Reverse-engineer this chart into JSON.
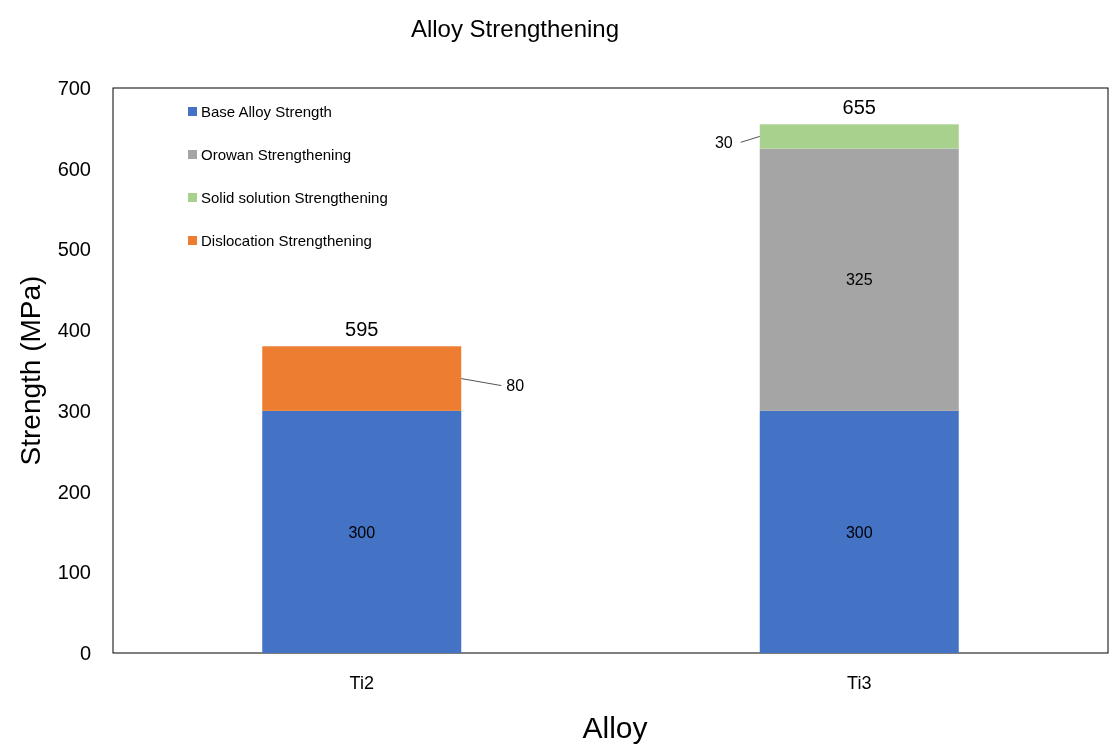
{
  "chart_data": {
    "type": "bar",
    "stacked": true,
    "title": "Alloy Strengthening",
    "xlabel": "Alloy",
    "ylabel": "Strength (MPa)",
    "categories": [
      "Ti2",
      "Ti3"
    ],
    "series": [
      {
        "name": "Base Alloy Strength",
        "color": "#4472c4",
        "values": [
          300,
          300
        ],
        "value_labels": [
          "300",
          "300"
        ]
      },
      {
        "name": "Orowan Strengthening",
        "color": "#a5a5a5",
        "values": [
          null,
          325
        ],
        "value_labels": [
          null,
          "325"
        ]
      },
      {
        "name": "Solid solution Strengthening",
        "color": "#a9d18e",
        "values": [
          null,
          30
        ],
        "value_labels": [
          null,
          "30"
        ]
      },
      {
        "name": "Dislocation Strengthening",
        "color": "#ed7d31",
        "values": [
          80,
          null
        ],
        "value_labels": [
          "80",
          null
        ]
      }
    ],
    "annotations": [
      {
        "text": "595",
        "x": "Ti2",
        "y": 380
      },
      {
        "text": "655",
        "x": "Ti3",
        "y": 655
      }
    ],
    "ylim": [
      0,
      700
    ],
    "yticks": [
      0,
      100,
      200,
      300,
      400,
      500,
      600,
      700
    ],
    "grid": false,
    "legend": "top left"
  }
}
